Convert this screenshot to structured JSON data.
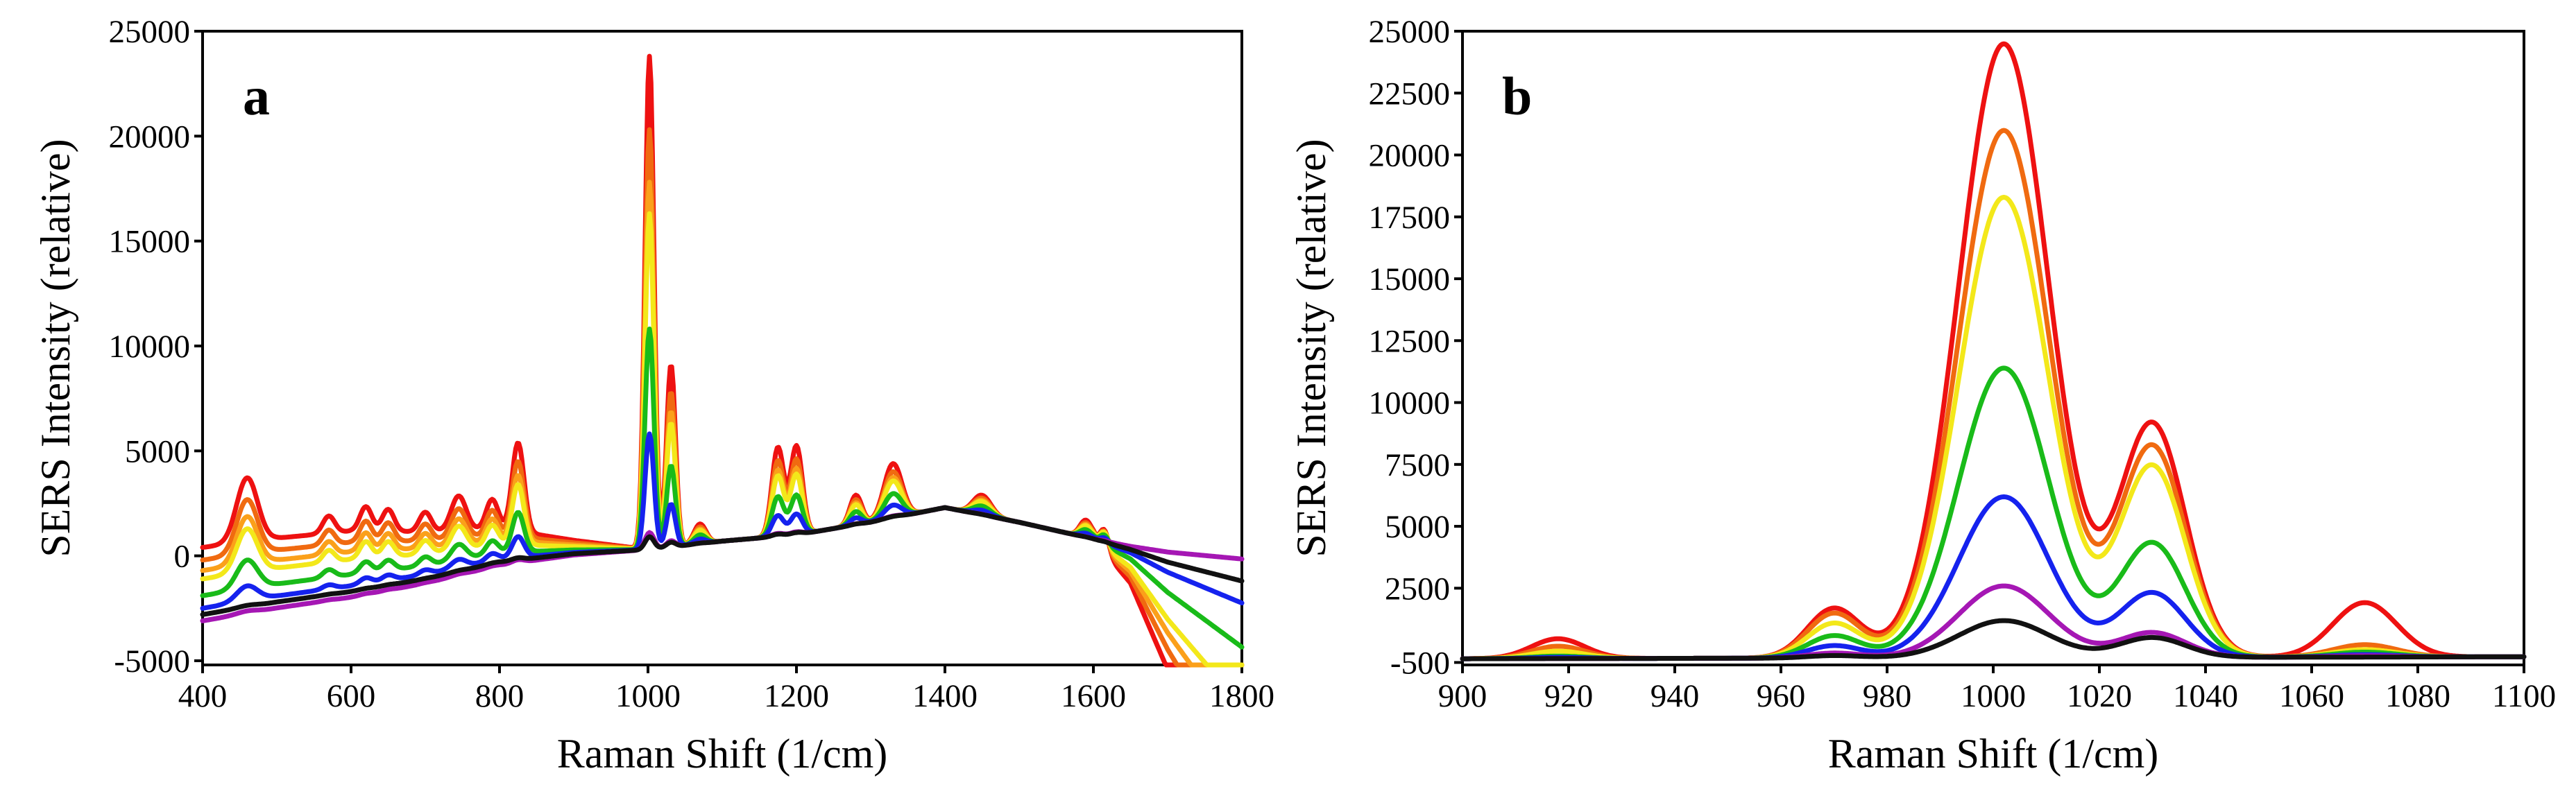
{
  "chart_data": [
    {
      "panel": "a",
      "type": "line",
      "xlabel": "Raman Shift (1/cm)",
      "ylabel": "SERS Intensity (relative)",
      "xlim": [
        400,
        1800
      ],
      "ylim": [
        -5200,
        25000
      ],
      "xticks": [
        400,
        600,
        800,
        1000,
        1200,
        1400,
        1600,
        1800
      ],
      "yticks": [
        -5000,
        0,
        5000,
        10000,
        15000,
        20000,
        25000
      ],
      "xtick_labels": [
        "400",
        "600",
        "800",
        "1000",
        "1200",
        "1400",
        "1600",
        "1800"
      ],
      "ytick_labels": [
        "-5000",
        "0",
        "5000",
        "10000",
        "15000",
        "20000",
        "25000"
      ],
      "baseline_points": [
        [
          400,
          -2800
        ],
        [
          500,
          -2200
        ],
        [
          600,
          -1700
        ],
        [
          700,
          -1100
        ],
        [
          800,
          -300
        ],
        [
          900,
          100
        ],
        [
          950,
          200
        ],
        [
          1000,
          300
        ],
        [
          1100,
          700
        ],
        [
          1200,
          1000
        ],
        [
          1300,
          1600
        ],
        [
          1400,
          2300
        ],
        [
          1500,
          1600
        ],
        [
          1600,
          800
        ],
        [
          1650,
          300
        ],
        [
          1700,
          -300
        ],
        [
          1800,
          -1200
        ]
      ],
      "offset_profile": [
        [
          400,
          1.0
        ],
        [
          600,
          0.9
        ],
        [
          800,
          0.5
        ],
        [
          900,
          0.2
        ],
        [
          1000,
          0
        ],
        [
          1100,
          0
        ],
        [
          1400,
          0
        ],
        [
          1600,
          0
        ],
        [
          1650,
          -0.5
        ],
        [
          1700,
          -1.6
        ],
        [
          1800,
          -3.5
        ]
      ],
      "peaks": [
        {
          "center": 460,
          "width": 14,
          "weight": 1.3
        },
        {
          "center": 570,
          "width": 8,
          "weight": 0.35
        },
        {
          "center": 620,
          "width": 8,
          "weight": 0.5
        },
        {
          "center": 650,
          "width": 8,
          "weight": 0.45
        },
        {
          "center": 700,
          "width": 8,
          "weight": 0.4
        },
        {
          "center": 745,
          "width": 10,
          "weight": 0.7
        },
        {
          "center": 790,
          "width": 8,
          "weight": 0.6
        },
        {
          "center": 825,
          "width": 8,
          "weight": 1.8
        },
        {
          "center": 1002,
          "width": 6,
          "weight": 10
        },
        {
          "center": 1031,
          "width": 6,
          "weight": 3.7
        },
        {
          "center": 1070,
          "width": 8,
          "weight": 0.4
        },
        {
          "center": 1175,
          "width": 8,
          "weight": 1.8
        },
        {
          "center": 1200,
          "width": 8,
          "weight": 1.8
        },
        {
          "center": 1280,
          "width": 8,
          "weight": 0.6
        },
        {
          "center": 1330,
          "width": 12,
          "weight": 1.1
        },
        {
          "center": 1450,
          "width": 12,
          "weight": 0.4
        },
        {
          "center": 1590,
          "width": 8,
          "weight": 0.35
        },
        {
          "center": 1615,
          "width": 6,
          "weight": 0.45
        }
      ],
      "series": [
        {
          "name": "red",
          "color": "#ee1111",
          "peak_scale": 2350,
          "offset_scale": 3200
        },
        {
          "name": "dark-orange",
          "color": "#f06a10",
          "peak_scale": 2000,
          "offset_scale": 2600
        },
        {
          "name": "orange",
          "color": "#fba01a",
          "peak_scale": 1750,
          "offset_scale": 2100
        },
        {
          "name": "yellow",
          "color": "#f3e81a",
          "peak_scale": 1600,
          "offset_scale": 1700
        },
        {
          "name": "green",
          "color": "#19bb19",
          "peak_scale": 1050,
          "offset_scale": 900
        },
        {
          "name": "blue",
          "color": "#1522ee",
          "peak_scale": 550,
          "offset_scale": 300
        },
        {
          "name": "purple",
          "color": "#a517b4",
          "peak_scale": 80,
          "offset_scale": -300
        },
        {
          "name": "black",
          "color": "#111111",
          "peak_scale": 60,
          "offset_scale": 0
        }
      ]
    },
    {
      "panel": "b",
      "type": "line",
      "xlabel": "Raman Shift (1/cm)",
      "ylabel": "SERS Intensity (relative)",
      "xlim": [
        900,
        1100
      ],
      "ylim": [
        -600,
        25000
      ],
      "xticks": [
        900,
        920,
        940,
        960,
        980,
        1000,
        1020,
        1040,
        1060,
        1080,
        1100
      ],
      "yticks": [
        -500,
        2500,
        5000,
        7500,
        10000,
        12500,
        15000,
        17500,
        20000,
        22500,
        25000
      ],
      "xtick_labels": [
        "900",
        "920",
        "940",
        "960",
        "980",
        "1000",
        "1020",
        "1040",
        "1060",
        "1080",
        "1100"
      ],
      "ytick_labels": [
        "-500",
        "2500",
        "5000",
        "7500",
        "10000",
        "12500",
        "15000",
        "17500",
        "20000",
        "22500",
        "25000"
      ],
      "baseline": 0,
      "series": [
        {
          "name": "red",
          "color": "#ee1111",
          "peak1000": 24500,
          "peak1030": 9700,
          "side970": 2000,
          "side1070": 2200,
          "side918": 800
        },
        {
          "name": "dark-orange",
          "color": "#f06a10",
          "peak1000": 21000,
          "peak1030": 8800,
          "side970": 1800,
          "side1070": 500,
          "side918": 500
        },
        {
          "name": "yellow",
          "color": "#f3e81a",
          "peak1000": 18300,
          "peak1030": 8000,
          "side970": 1400,
          "side1070": 300,
          "side918": 300
        },
        {
          "name": "green",
          "color": "#19bb19",
          "peak1000": 11400,
          "peak1030": 4900,
          "side970": 900,
          "side1070": 200,
          "side918": 100
        },
        {
          "name": "blue",
          "color": "#1522ee",
          "peak1000": 6200,
          "peak1030": 2900,
          "side970": 500,
          "side1070": 100,
          "side918": 50
        },
        {
          "name": "purple",
          "color": "#a517b4",
          "peak1000": 2600,
          "peak1030": 1300,
          "side970": 200,
          "side1070": 50,
          "side918": 0
        },
        {
          "name": "black",
          "color": "#111111",
          "peak1000": 1200,
          "peak1030": 1100,
          "side970": 100,
          "side1070": 0,
          "side918": 0
        }
      ]
    }
  ],
  "panel_labels": {
    "a": "a",
    "b": "b"
  }
}
